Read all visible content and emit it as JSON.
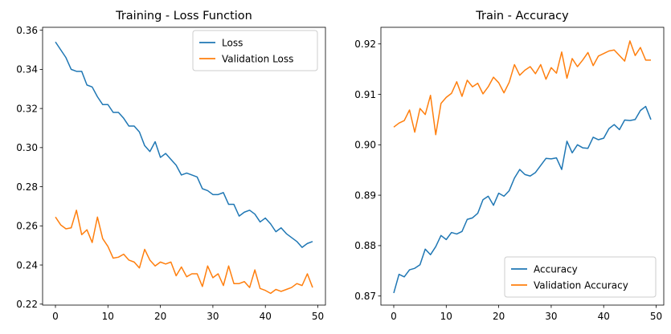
{
  "chart_data": [
    {
      "type": "line",
      "title": "Training - Loss Function",
      "xlabel": "",
      "ylabel": "",
      "xlim": [
        -2.45,
        51.45
      ],
      "ylim": [
        0.2195,
        0.3615
      ],
      "xticks": [
        0,
        10,
        20,
        30,
        40,
        50
      ],
      "yticks": [
        0.22,
        0.24,
        0.26,
        0.28,
        0.3,
        0.32,
        0.34,
        0.36
      ],
      "ytick_labels": [
        "0.22",
        "0.24",
        "0.26",
        "0.28",
        "0.30",
        "0.32",
        "0.34",
        "0.36"
      ],
      "grid": false,
      "legend_position": "top-right",
      "x": [
        0,
        1,
        2,
        3,
        4,
        5,
        6,
        7,
        8,
        9,
        10,
        11,
        12,
        13,
        14,
        15,
        16,
        17,
        18,
        19,
        20,
        21,
        22,
        23,
        24,
        25,
        26,
        27,
        28,
        29,
        30,
        31,
        32,
        33,
        34,
        35,
        36,
        37,
        38,
        39,
        40,
        41,
        42,
        43,
        44,
        45,
        46,
        47,
        48,
        49
      ],
      "series": [
        {
          "name": "Loss",
          "color": "#1f77b4",
          "values": [
            0.354,
            0.35,
            0.346,
            0.34,
            0.339,
            0.339,
            0.332,
            0.331,
            0.326,
            0.322,
            0.322,
            0.318,
            0.318,
            0.315,
            0.311,
            0.311,
            0.308,
            0.301,
            0.298,
            0.303,
            0.295,
            0.297,
            0.294,
            0.291,
            0.286,
            0.287,
            0.286,
            0.285,
            0.279,
            0.278,
            0.276,
            0.276,
            0.277,
            0.271,
            0.271,
            0.265,
            0.267,
            0.268,
            0.266,
            0.262,
            0.264,
            0.261,
            0.257,
            0.259,
            0.256,
            0.254,
            0.252,
            0.249,
            0.251,
            0.252
          ]
        },
        {
          "name": "Validation Loss",
          "color": "#ff7f0e",
          "values": [
            0.2645,
            0.2605,
            0.2585,
            0.259,
            0.268,
            0.2555,
            0.258,
            0.2515,
            0.2645,
            0.2535,
            0.2495,
            0.2435,
            0.244,
            0.2455,
            0.2425,
            0.2415,
            0.2385,
            0.248,
            0.2425,
            0.2395,
            0.2415,
            0.2405,
            0.2415,
            0.2345,
            0.239,
            0.234,
            0.2355,
            0.2355,
            0.229,
            0.2395,
            0.2335,
            0.2355,
            0.2295,
            0.2395,
            0.2305,
            0.2305,
            0.2315,
            0.2285,
            0.2375,
            0.228,
            0.227,
            0.2255,
            0.2275,
            0.2265,
            0.2275,
            0.2285,
            0.2305,
            0.2295,
            0.2355,
            0.2285
          ]
        }
      ]
    },
    {
      "type": "line",
      "title": "Train - Accuracy",
      "xlabel": "",
      "ylabel": "",
      "xlim": [
        -2.45,
        51.45
      ],
      "ylim": [
        0.8682,
        0.9233
      ],
      "xticks": [
        0,
        10,
        20,
        30,
        40,
        50
      ],
      "yticks": [
        0.87,
        0.88,
        0.89,
        0.9,
        0.91,
        0.92
      ],
      "ytick_labels": [
        "0.87",
        "0.88",
        "0.89",
        "0.90",
        "0.91",
        "0.92"
      ],
      "grid": false,
      "legend_position": "bottom-right",
      "x": [
        0,
        1,
        2,
        3,
        4,
        5,
        6,
        7,
        8,
        9,
        10,
        11,
        12,
        13,
        14,
        15,
        16,
        17,
        18,
        19,
        20,
        21,
        22,
        23,
        24,
        25,
        26,
        27,
        28,
        29,
        30,
        31,
        32,
        33,
        34,
        35,
        36,
        37,
        38,
        39,
        40,
        41,
        42,
        43,
        44,
        45,
        46,
        47,
        48,
        49
      ],
      "series": [
        {
          "name": "Accuracy",
          "color": "#1f77b4",
          "values": [
            0.8706,
            0.8743,
            0.8738,
            0.8752,
            0.8755,
            0.8762,
            0.8793,
            0.8782,
            0.8798,
            0.882,
            0.8812,
            0.8826,
            0.8823,
            0.8828,
            0.8852,
            0.8855,
            0.8864,
            0.8891,
            0.8898,
            0.888,
            0.8904,
            0.8898,
            0.8909,
            0.8934,
            0.8951,
            0.8941,
            0.8938,
            0.8945,
            0.8959,
            0.8973,
            0.8972,
            0.8974,
            0.8951,
            0.9007,
            0.8984,
            0.9,
            0.8994,
            0.8993,
            0.9015,
            0.901,
            0.9013,
            0.9032,
            0.904,
            0.903,
            0.9049,
            0.9048,
            0.905,
            0.9068,
            0.9076,
            0.905
          ]
        },
        {
          "name": "Validation Accuracy",
          "color": "#ff7f0e",
          "values": [
            0.9035,
            0.9043,
            0.9048,
            0.9069,
            0.9025,
            0.9072,
            0.906,
            0.9098,
            0.902,
            0.9082,
            0.9094,
            0.9102,
            0.9125,
            0.9096,
            0.9128,
            0.9115,
            0.9122,
            0.9101,
            0.9115,
            0.9134,
            0.9123,
            0.9103,
            0.9124,
            0.9159,
            0.9138,
            0.9148,
            0.9155,
            0.9141,
            0.9159,
            0.913,
            0.9153,
            0.9142,
            0.9184,
            0.9132,
            0.9171,
            0.9155,
            0.9168,
            0.9183,
            0.9157,
            0.9176,
            0.9181,
            0.9186,
            0.9188,
            0.9177,
            0.9166,
            0.9206,
            0.9177,
            0.9193,
            0.9168,
            0.9168
          ]
        }
      ]
    }
  ]
}
